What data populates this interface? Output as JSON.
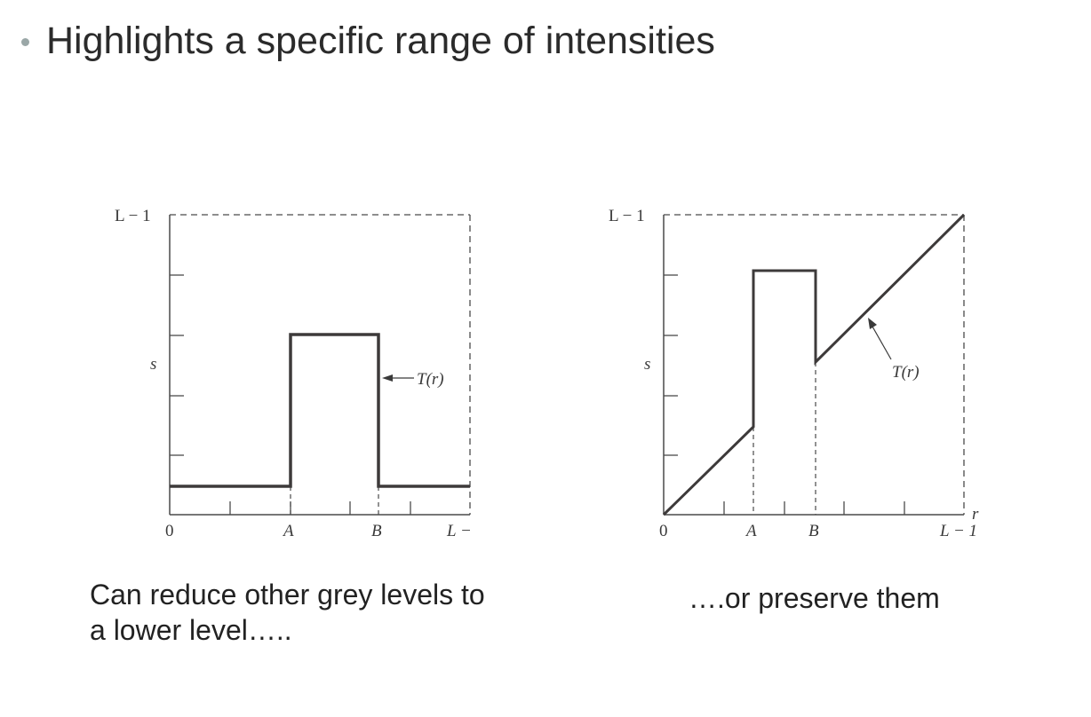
{
  "slide": {
    "title": "Highlights a specific range of intensities"
  },
  "graphs": {
    "left": {
      "y_top_label": "L − 1",
      "y_label": "s",
      "x_labels": [
        "0",
        "A",
        "B",
        "L −"
      ],
      "curve_label": "T(r)"
    },
    "right": {
      "y_top_label": "L − 1",
      "y_label": "s",
      "x_labels": [
        "0",
        "A",
        "B",
        "L − 1"
      ],
      "x_axis_label": "r",
      "curve_label": "T(r)"
    }
  },
  "captions": {
    "left_line1": "Can reduce other grey levels to",
    "left_line2": "a lower level…..",
    "right": "….or preserve them"
  },
  "colors": {
    "curve": "#3d3a3a",
    "axis": "#4a4a4a",
    "bullet": "#9aa7a7"
  }
}
